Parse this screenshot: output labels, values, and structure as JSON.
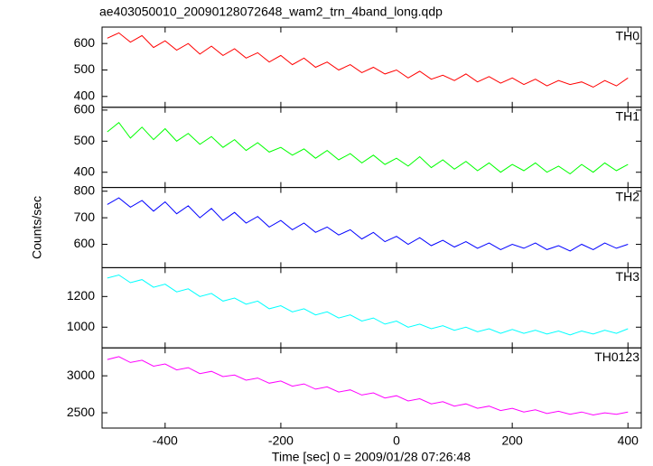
{
  "chart_data": {
    "type": "line",
    "title": "ae403050010_20090128072648_wam2_trn_4band_long.qdp",
    "xlabel": "Time [sec] 0 = 2009/01/28 07:26:48",
    "ylabel": "Counts/sec",
    "xlim": [
      -509,
      423
    ],
    "xticks": [
      -400,
      -200,
      0,
      200,
      400
    ],
    "x": [
      -500,
      -480,
      -460,
      -440,
      -420,
      -400,
      -380,
      -360,
      -340,
      -320,
      -300,
      -280,
      -260,
      -240,
      -220,
      -200,
      -180,
      -160,
      -140,
      -120,
      -100,
      -80,
      -60,
      -40,
      -20,
      0,
      20,
      40,
      60,
      80,
      100,
      120,
      140,
      160,
      180,
      200,
      220,
      240,
      260,
      280,
      300,
      320,
      340,
      360,
      380,
      400
    ],
    "panels": [
      {
        "name": "TH0",
        "color": "#ff0000",
        "ylim": [
          359,
          662
        ],
        "yticks": [
          400,
          500,
          600
        ],
        "values": [
          620,
          640,
          605,
          630,
          585,
          610,
          575,
          600,
          560,
          590,
          555,
          580,
          545,
          565,
          530,
          555,
          520,
          545,
          510,
          530,
          500,
          520,
          490,
          510,
          485,
          500,
          470,
          495,
          465,
          480,
          460,
          485,
          455,
          475,
          450,
          470,
          445,
          465,
          440,
          460,
          445,
          455,
          435,
          460,
          440,
          470
        ]
      },
      {
        "name": "TH1",
        "color": "#00ff00",
        "ylim": [
          351,
          609
        ],
        "yticks": [
          400,
          500,
          600
        ],
        "values": [
          530,
          560,
          510,
          545,
          505,
          540,
          500,
          525,
          490,
          515,
          480,
          505,
          470,
          495,
          465,
          480,
          455,
          475,
          445,
          470,
          440,
          460,
          430,
          455,
          425,
          445,
          420,
          450,
          415,
          440,
          410,
          435,
          405,
          430,
          400,
          425,
          405,
          430,
          400,
          420,
          395,
          425,
          400,
          430,
          405,
          425
        ]
      },
      {
        "name": "TH2",
        "color": "#0000ff",
        "ylim": [
          512,
          814
        ],
        "yticks": [
          600,
          700,
          800
        ],
        "values": [
          750,
          775,
          740,
          765,
          725,
          760,
          715,
          745,
          700,
          735,
          690,
          720,
          680,
          705,
          665,
          690,
          655,
          680,
          645,
          665,
          635,
          655,
          620,
          645,
          610,
          630,
          600,
          625,
          595,
          615,
          590,
          610,
          585,
          605,
          580,
          600,
          585,
          605,
          580,
          595,
          575,
          600,
          580,
          605,
          585,
          600
        ]
      },
      {
        "name": "TH3",
        "color": "#00ffff",
        "ylim": [
          865,
          1388
        ],
        "yticks": [
          1000,
          1200
        ],
        "values": [
          1320,
          1340,
          1290,
          1310,
          1260,
          1280,
          1230,
          1250,
          1200,
          1220,
          1170,
          1190,
          1150,
          1170,
          1120,
          1140,
          1100,
          1120,
          1080,
          1100,
          1060,
          1080,
          1040,
          1060,
          1020,
          1040,
          1000,
          1020,
          990,
          1010,
          980,
          1000,
          970,
          990,
          960,
          985,
          960,
          980,
          955,
          975,
          950,
          975,
          955,
          980,
          960,
          990
        ]
      },
      {
        "name": "TH0123",
        "color": "#ff00ff",
        "ylim": [
          2293,
          3378
        ],
        "yticks": [
          2500,
          3000
        ],
        "values": [
          3220,
          3260,
          3180,
          3210,
          3130,
          3160,
          3080,
          3110,
          3030,
          3060,
          2990,
          3010,
          2940,
          2970,
          2900,
          2930,
          2860,
          2890,
          2820,
          2850,
          2780,
          2810,
          2740,
          2770,
          2700,
          2730,
          2660,
          2690,
          2620,
          2650,
          2590,
          2620,
          2560,
          2590,
          2530,
          2560,
          2510,
          2540,
          2490,
          2520,
          2480,
          2510,
          2470,
          2500,
          2480,
          2510
        ]
      }
    ]
  }
}
